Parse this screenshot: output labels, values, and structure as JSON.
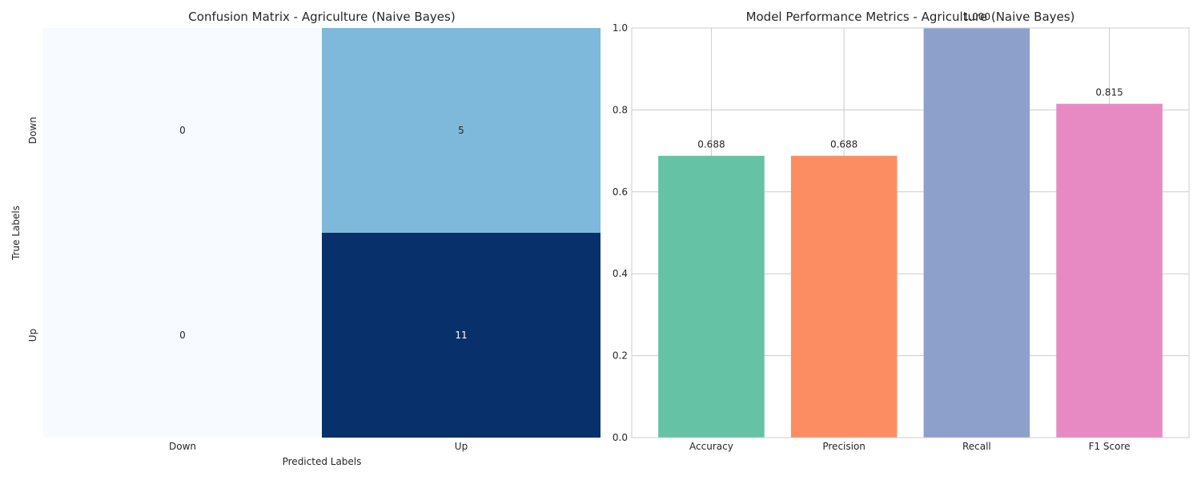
{
  "chart_data": [
    {
      "type": "heatmap",
      "title": "Confusion Matrix - Agriculture (Naive Bayes)",
      "xlabel": "Predicted Labels",
      "ylabel": "True Labels",
      "x_categories": [
        "Down",
        "Up"
      ],
      "y_categories": [
        "Down",
        "Up"
      ],
      "values": [
        [
          0,
          5
        ],
        [
          0,
          11
        ]
      ],
      "colormap": "Blues",
      "value_range": [
        0,
        11
      ]
    },
    {
      "type": "bar",
      "title": "Model Performance Metrics - Agriculture (Naive Bayes)",
      "categories": [
        "Accuracy",
        "Precision",
        "Recall",
        "F1 Score"
      ],
      "values": [
        0.688,
        0.688,
        1.0,
        0.815
      ],
      "labels": [
        "0.688",
        "0.688",
        "1.000",
        "0.815"
      ],
      "colors": [
        "#66c2a5",
        "#fc8d62",
        "#8da0cb",
        "#e78ac3"
      ],
      "ylim": [
        0,
        1.0
      ],
      "yticks": [
        "0.0",
        "0.2",
        "0.4",
        "0.6",
        "0.8",
        "1.0"
      ],
      "grid": true
    }
  ]
}
